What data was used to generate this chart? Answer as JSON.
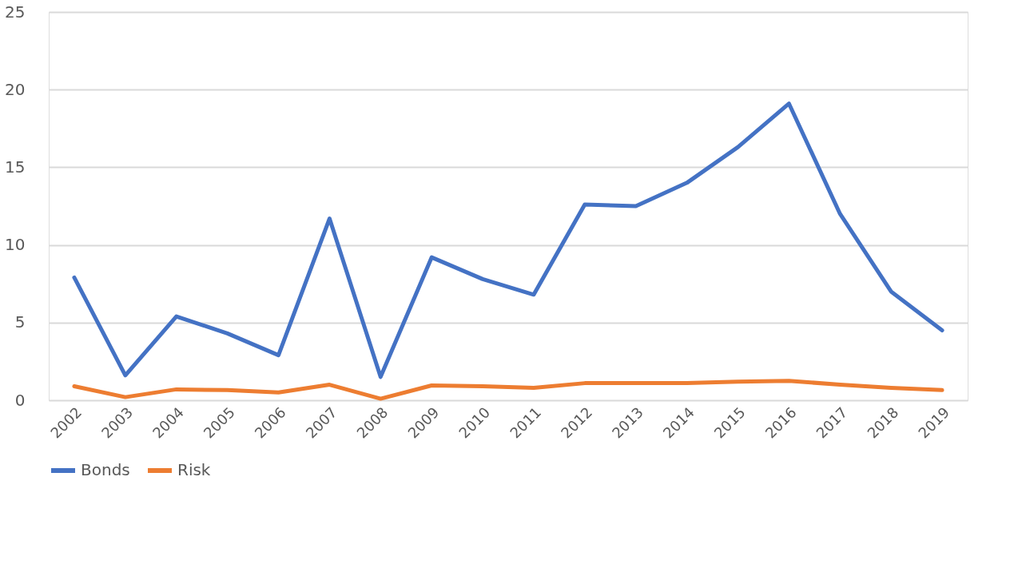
{
  "chart_data": {
    "type": "line",
    "categories": [
      "2002",
      "2003",
      "2004",
      "2005",
      "2006",
      "2007",
      "2008",
      "2009",
      "2010",
      "2011",
      "2012",
      "2013",
      "2014",
      "2015",
      "2016",
      "2017",
      "2018",
      "2019"
    ],
    "series": [
      {
        "name": "Bonds",
        "color": "#4472c4",
        "values": [
          7.9,
          1.6,
          5.4,
          4.3,
          2.9,
          11.7,
          1.5,
          9.2,
          7.8,
          6.8,
          12.6,
          12.5,
          14.0,
          16.3,
          19.1,
          12.0,
          7.0,
          4.5
        ]
      },
      {
        "name": "Risk",
        "color": "#ed7d31",
        "values": [
          0.9,
          0.2,
          0.7,
          0.65,
          0.5,
          1.0,
          0.1,
          0.95,
          0.9,
          0.8,
          1.1,
          1.1,
          1.1,
          1.2,
          1.25,
          1.0,
          0.8,
          0.65
        ]
      }
    ],
    "ylim": [
      0,
      25
    ],
    "yticks": [
      0,
      5,
      10,
      15,
      20,
      25
    ],
    "grid": "y",
    "legend": "bottom",
    "marker": "none",
    "line_style": "solid"
  }
}
